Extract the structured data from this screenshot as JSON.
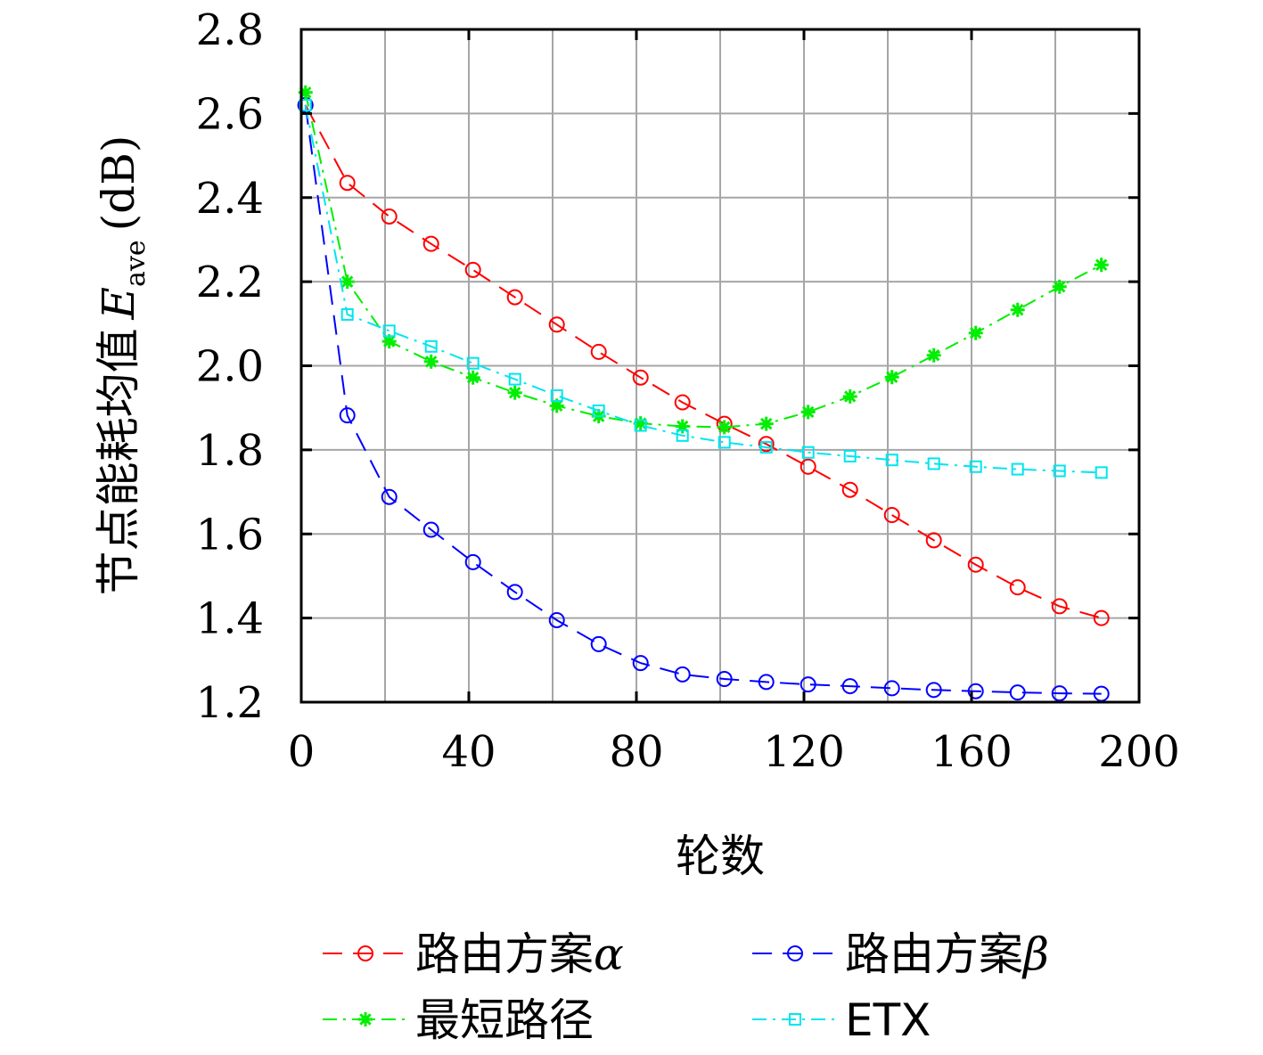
{
  "chart_data": {
    "type": "line",
    "title": "",
    "xlabel": "轮数",
    "ylabel": {
      "main": "节点能耗均值",
      "symbol": "E",
      "subscript": "ave",
      "unit": "(dB)"
    },
    "xlim": [
      0,
      200
    ],
    "ylim": [
      1.2,
      2.8
    ],
    "xticks": [
      0,
      40,
      80,
      120,
      160,
      200
    ],
    "yticks": [
      1.2,
      1.4,
      1.6,
      1.8,
      2.0,
      2.2,
      2.4,
      2.6,
      2.8
    ],
    "ytick_labels": [
      "1.2",
      "1.4",
      "1.6",
      "1.8",
      "2.0",
      "2.2",
      "2.4",
      "2.6",
      "2.8"
    ],
    "grid": true,
    "legend_position": "below",
    "x": [
      1,
      11,
      21,
      31,
      41,
      51,
      61,
      71,
      81,
      91,
      101,
      111,
      121,
      131,
      141,
      151,
      161,
      171,
      181,
      191
    ],
    "series": [
      {
        "name": "路由方案",
        "name_symbol": "α",
        "color": "#ff0000",
        "marker": "circle",
        "dash": "22,12",
        "values": [
          2.62,
          2.435,
          2.355,
          2.29,
          2.228,
          2.163,
          2.098,
          2.033,
          1.972,
          1.913,
          1.862,
          1.814,
          1.76,
          1.705,
          1.645,
          1.585,
          1.527,
          1.473,
          1.428,
          1.4
        ]
      },
      {
        "name": "路由方案",
        "name_symbol": "β",
        "color": "#0000ff",
        "marker": "circle",
        "dash": "22,12",
        "values": [
          2.62,
          1.882,
          1.688,
          1.61,
          1.533,
          1.462,
          1.395,
          1.338,
          1.293,
          1.266,
          1.255,
          1.248,
          1.242,
          1.238,
          1.233,
          1.229,
          1.226,
          1.223,
          1.221,
          1.22
        ]
      },
      {
        "name": "最短路径",
        "name_symbol": "",
        "color": "#00ee00",
        "marker": "asterisk",
        "dash": "16,7,3,7",
        "values": [
          2.65,
          2.2,
          2.058,
          2.01,
          1.972,
          1.936,
          1.905,
          1.88,
          1.863,
          1.856,
          1.854,
          1.862,
          1.89,
          1.927,
          1.973,
          2.025,
          2.078,
          2.133,
          2.188,
          2.24
        ]
      },
      {
        "name": "ETX",
        "name_symbol": "",
        "color": "#00e5ee",
        "marker": "square",
        "dash": "16,7,3,7",
        "values": [
          2.62,
          2.122,
          2.083,
          2.046,
          2.006,
          1.968,
          1.929,
          1.893,
          1.858,
          1.834,
          1.818,
          1.806,
          1.794,
          1.785,
          1.776,
          1.767,
          1.76,
          1.754,
          1.75,
          1.746
        ]
      }
    ]
  }
}
